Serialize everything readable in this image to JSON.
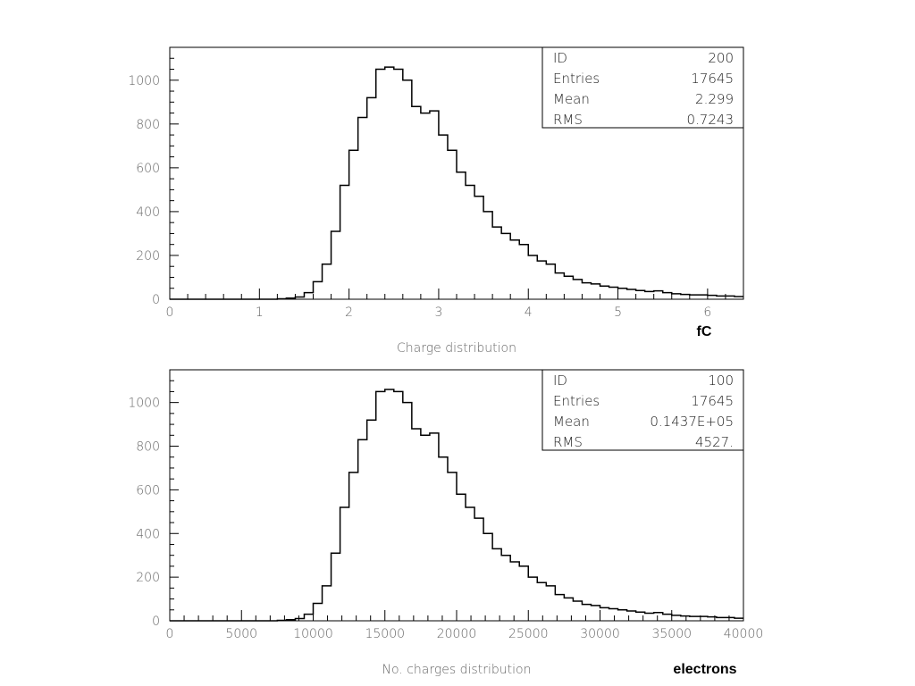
{
  "chart_data": [
    {
      "type": "histogram",
      "xlabel": "Charge distribution",
      "unit_label": "fC",
      "xlim": [
        0,
        6.4
      ],
      "ylim": [
        0,
        1150
      ],
      "x_ticks": [
        "0",
        "1",
        "2",
        "3",
        "4",
        "5",
        "6"
      ],
      "x_tick_values": [
        0,
        1,
        2,
        3,
        4,
        5,
        6
      ],
      "y_ticks": [
        "0",
        "200",
        "400",
        "600",
        "800",
        "1000"
      ],
      "y_tick_values": [
        0,
        200,
        400,
        600,
        800,
        1000
      ],
      "bin_width": 0.1,
      "counts": [
        0,
        0,
        0,
        0,
        0,
        0,
        0,
        0,
        0,
        0,
        0,
        0,
        2,
        5,
        10,
        30,
        80,
        160,
        310,
        520,
        680,
        830,
        920,
        1050,
        1060,
        1050,
        1000,
        880,
        850,
        860,
        750,
        680,
        580,
        520,
        470,
        400,
        330,
        300,
        270,
        250,
        200,
        175,
        160,
        120,
        105,
        90,
        75,
        70,
        60,
        55,
        50,
        45,
        40,
        35,
        38,
        30,
        25,
        22,
        20,
        20,
        18,
        15,
        15,
        12,
        12
      ]
    },
    {
      "type": "histogram",
      "xlabel": "No. charges distribution",
      "unit_label": "electrons",
      "xlim": [
        0,
        40000
      ],
      "ylim": [
        0,
        1150
      ],
      "x_ticks": [
        "0",
        "5000",
        "10000",
        "15000",
        "20000",
        "25000",
        "30000",
        "35000",
        "40000"
      ],
      "x_tick_values": [
        0,
        5000,
        10000,
        15000,
        20000,
        25000,
        30000,
        35000,
        40000
      ],
      "y_ticks": [
        "0",
        "200",
        "400",
        "600",
        "800",
        "1000"
      ],
      "y_tick_values": [
        0,
        200,
        400,
        600,
        800,
        1000
      ],
      "bin_width": 625,
      "counts": [
        0,
        0,
        0,
        0,
        0,
        0,
        0,
        0,
        0,
        0,
        0,
        0,
        2,
        5,
        10,
        30,
        80,
        160,
        310,
        520,
        680,
        830,
        920,
        1050,
        1060,
        1050,
        1000,
        880,
        850,
        860,
        750,
        680,
        580,
        520,
        470,
        400,
        330,
        300,
        270,
        250,
        200,
        175,
        160,
        120,
        105,
        90,
        75,
        70,
        60,
        55,
        50,
        45,
        40,
        35,
        38,
        30,
        25,
        22,
        20,
        20,
        18,
        15,
        15,
        12
      ]
    }
  ],
  "stats_boxes": [
    {
      "rows": [
        {
          "label": "ID",
          "value": "200"
        },
        {
          "label": "Entries",
          "value": "17645"
        },
        {
          "label": "Mean",
          "value": "2.299"
        },
        {
          "label": "RMS",
          "value": "0.7243"
        }
      ]
    },
    {
      "rows": [
        {
          "label": "ID",
          "value": "100"
        },
        {
          "label": "Entries",
          "value": "17645"
        },
        {
          "label": "Mean",
          "value": "0.1437E+05"
        },
        {
          "label": "RMS",
          "value": "4527."
        }
      ]
    }
  ]
}
